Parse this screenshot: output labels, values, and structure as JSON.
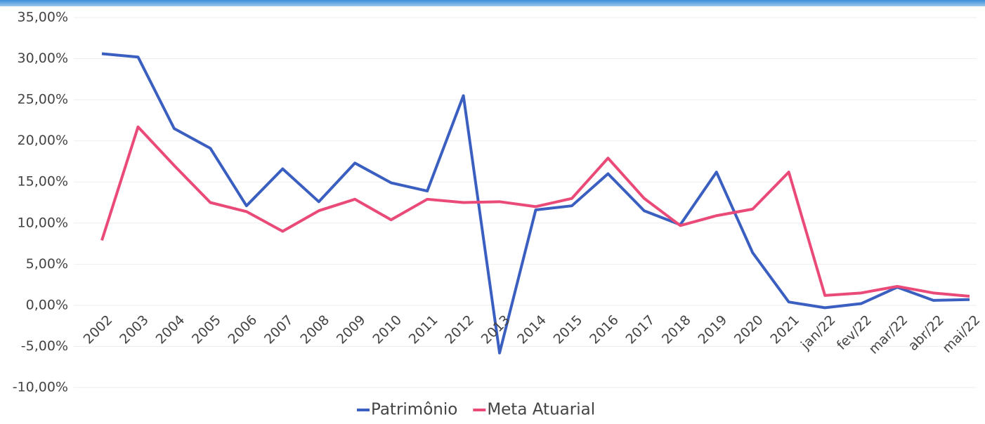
{
  "chart_data": {
    "type": "line",
    "categories": [
      "2002",
      "2003",
      "2004",
      "2005",
      "2006",
      "2007",
      "2008",
      "2009",
      "2010",
      "2011",
      "2012",
      "2013",
      "2014",
      "2015",
      "2016",
      "2017",
      "2018",
      "2019",
      "2020",
      "2021",
      "jan/22",
      "fev/22",
      "mar/22",
      "abr/22",
      "mai/22"
    ],
    "series": [
      {
        "name": "Patrimônio",
        "color": "#3a5fc0",
        "values": [
          30.6,
          30.2,
          21.5,
          19.1,
          12.1,
          16.6,
          12.6,
          17.3,
          14.9,
          13.9,
          25.5,
          -5.8,
          11.6,
          12.1,
          16.0,
          11.5,
          9.8,
          16.2,
          6.4,
          0.4,
          -0.3,
          0.2,
          2.2,
          0.6,
          0.7
        ]
      },
      {
        "name": "Meta Atuarial",
        "color": "#ea4a78",
        "values": [
          7.9,
          21.7,
          17.0,
          12.5,
          11.4,
          9.0,
          11.5,
          12.9,
          10.4,
          12.9,
          12.5,
          12.6,
          12.0,
          13.0,
          17.9,
          13.0,
          9.7,
          10.9,
          11.7,
          16.2,
          1.2,
          1.5,
          2.3,
          1.5,
          1.1
        ]
      }
    ],
    "ylim": [
      -10,
      35
    ],
    "yticks": [
      {
        "value": -10,
        "label": "-10,00%"
      },
      {
        "value": -5,
        "label": "-5,00%"
      },
      {
        "value": 0,
        "label": "0,00%"
      },
      {
        "value": 5,
        "label": "5,00%"
      },
      {
        "value": 10,
        "label": "10,00%"
      },
      {
        "value": 15,
        "label": "15,00%"
      },
      {
        "value": 20,
        "label": "20,00%"
      },
      {
        "value": 25,
        "label": "25,00%"
      },
      {
        "value": 30,
        "label": "30,00%"
      },
      {
        "value": 35,
        "label": "35,00%"
      }
    ],
    "grid": true,
    "legend": "bottom"
  }
}
